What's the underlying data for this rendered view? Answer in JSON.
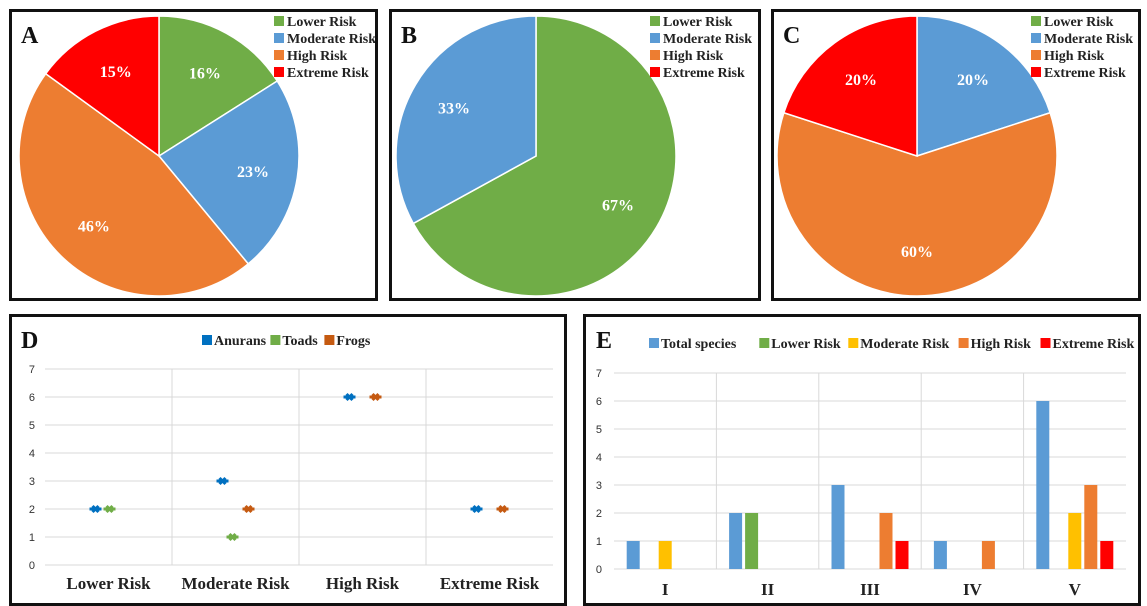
{
  "chart_data": [
    {
      "id": "A",
      "type": "pie",
      "panel_label": "A",
      "legend": [
        "Lower Risk",
        "Moderate Risk",
        "High Risk",
        "Extreme Risk"
      ],
      "legend_colors": [
        "#70ad47",
        "#5b9bd5",
        "#ed7d31",
        "#ff0000"
      ],
      "slices": [
        {
          "label": "Lower Risk",
          "value": 16,
          "text": "16%",
          "color": "#70ad47"
        },
        {
          "label": "Moderate Risk",
          "value": 23,
          "text": "23%",
          "color": "#5b9bd5"
        },
        {
          "label": "High Risk",
          "value": 46,
          "text": "46%",
          "color": "#ed7d31"
        },
        {
          "label": "Extreme Risk",
          "value": 15,
          "text": "15%",
          "color": "#ff0000"
        }
      ]
    },
    {
      "id": "B",
      "type": "pie",
      "panel_label": "B",
      "legend": [
        "Lower Risk",
        "Moderate Risk",
        "High Risk",
        "Extreme Risk"
      ],
      "legend_colors": [
        "#70ad47",
        "#5b9bd5",
        "#ed7d31",
        "#ff0000"
      ],
      "slices": [
        {
          "label": "Lower Risk",
          "value": 67,
          "text": "67%",
          "color": "#70ad47"
        },
        {
          "label": "Moderate Risk",
          "value": 33,
          "text": "33%",
          "color": "#5b9bd5"
        }
      ]
    },
    {
      "id": "C",
      "type": "pie",
      "panel_label": "C",
      "legend": [
        "Lower Risk",
        "Moderate Risk",
        "High Risk",
        "Extreme Risk"
      ],
      "legend_colors": [
        "#70ad47",
        "#5b9bd5",
        "#ed7d31",
        "#ff0000"
      ],
      "slices": [
        {
          "label": "Moderate Risk",
          "value": 20,
          "text": "20%",
          "color": "#5b9bd5"
        },
        {
          "label": "High Risk",
          "value": 60,
          "text": "60%",
          "color": "#ed7d31"
        },
        {
          "label": "Extreme Risk",
          "value": 20,
          "text": "20%",
          "color": "#ff0000"
        }
      ]
    },
    {
      "id": "D",
      "type": "scatter",
      "panel_label": "D",
      "categories": [
        "Lower Risk",
        "Moderate Risk",
        "High Risk",
        "Extreme Risk"
      ],
      "ylim": [
        0,
        7
      ],
      "yticks": [
        "0",
        "1",
        "2",
        "3",
        "4",
        "5",
        "6",
        "7"
      ],
      "legend": "top-center",
      "grid": true,
      "series": [
        {
          "name": "Anurans",
          "color": "#0070c0",
          "values": [
            2,
            3,
            6,
            2
          ]
        },
        {
          "name": "Toads",
          "color": "#70ad47",
          "values": [
            2,
            1,
            null,
            null
          ]
        },
        {
          "name": "Frogs",
          "color": "#c55a11",
          "values": [
            null,
            2,
            6,
            2
          ]
        }
      ]
    },
    {
      "id": "E",
      "type": "bar",
      "panel_label": "E",
      "categories": [
        "I",
        "II",
        "III",
        "IV",
        "V"
      ],
      "ylim": [
        0,
        7
      ],
      "yticks": [
        "0",
        "1",
        "2",
        "3",
        "4",
        "5",
        "6",
        "7"
      ],
      "legend": "top-center",
      "grid": true,
      "series": [
        {
          "name": "Total species",
          "color": "#5b9bd5",
          "values": [
            1,
            2,
            3,
            1,
            6
          ]
        },
        {
          "name": "Lower Risk",
          "color": "#70ad47",
          "values": [
            0,
            2,
            0,
            0,
            0
          ]
        },
        {
          "name": "Moderate Risk",
          "color": "#ffc000",
          "values": [
            1,
            0,
            0,
            0,
            2
          ]
        },
        {
          "name": "High Risk",
          "color": "#ed7d31",
          "values": [
            0,
            0,
            2,
            1,
            3
          ]
        },
        {
          "name": "Extreme Risk",
          "color": "#ff0000",
          "values": [
            0,
            0,
            1,
            0,
            1
          ]
        }
      ]
    }
  ]
}
